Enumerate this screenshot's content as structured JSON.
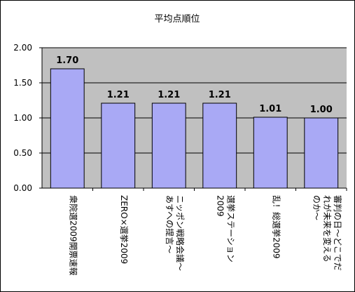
{
  "chart_data": {
    "type": "bar",
    "title": "平均点順位",
    "categories": [
      [
        "衆院選2009開票速報"
      ],
      [
        "ZERO×選挙2009"
      ],
      [
        "ニッポン戦略会議～",
        "あすへの提言～"
      ],
      [
        "選挙ステーション",
        "2009"
      ],
      [
        "乱！総選挙2009"
      ],
      [
        "審判の日～どこでだ",
        "れが未来を変える",
        "のか～"
      ]
    ],
    "values": [
      1.7,
      1.21,
      1.21,
      1.21,
      1.01,
      1.0
    ],
    "value_labels": [
      "1.70",
      "1.21",
      "1.21",
      "1.21",
      "1.01",
      "1.00"
    ],
    "y_ticks": [
      "0.00",
      "0.50",
      "1.00",
      "1.50",
      "2.00"
    ],
    "ylim": [
      0,
      2.0
    ],
    "xlabel": "",
    "ylabel": "",
    "grid": true,
    "legend": "none",
    "colors": {
      "bar_fill": "#A9A9F5",
      "bar_stroke": "#000000",
      "plot_background": "#C0C0C0",
      "grid": "#000000"
    }
  }
}
